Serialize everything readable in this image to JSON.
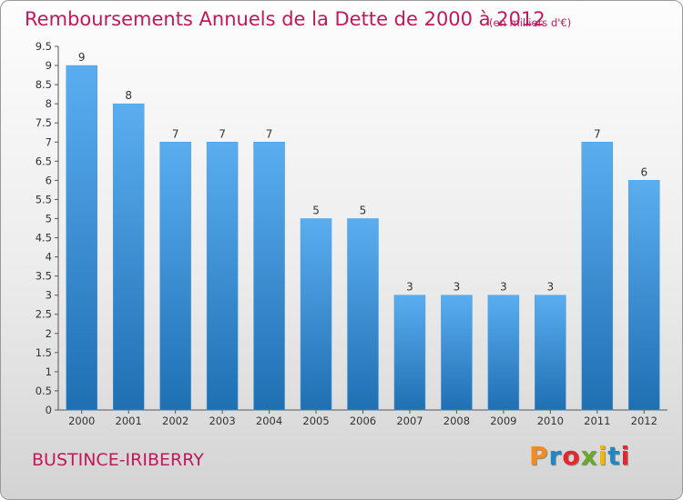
{
  "header": {
    "title": "Remboursements Annuels de la Dette de 2000 à 2012",
    "unit": "(en milliers d'€)"
  },
  "footer": {
    "commune": "BUSTINCE-IRIBERRY",
    "brand_letters": [
      "P",
      "r",
      "o",
      "x",
      "i",
      "t",
      "i"
    ],
    "brand_colors": [
      "#f28c1e",
      "#1e88c7",
      "#e6262e",
      "#6aa928",
      "#f2b705",
      "#1e88c7",
      "#e6262e"
    ]
  },
  "colors": {
    "accent_text": "#c2185b",
    "bar_top": "#5aaef0",
    "bar_bottom": "#1f6fb3"
  },
  "chart_data": {
    "type": "bar",
    "title": "Remboursements Annuels de la Dette de 2000 à 2012",
    "subtitle": "(en milliers d'€)",
    "categories": [
      "2000",
      "2001",
      "2002",
      "2003",
      "2004",
      "2005",
      "2006",
      "2007",
      "2008",
      "2009",
      "2010",
      "2011",
      "2012"
    ],
    "values": [
      9,
      8,
      7,
      7,
      7,
      5,
      5,
      3,
      3,
      3,
      3,
      7,
      6
    ],
    "data_labels": [
      "9",
      "8",
      "7",
      "7",
      "7",
      "5",
      "5",
      "3",
      "3",
      "3",
      "3",
      "7",
      "6"
    ],
    "ylim": [
      0,
      9.5
    ],
    "yticks": [
      "0",
      "0.5",
      "1",
      "1.5",
      "2",
      "2.5",
      "3",
      "3.5",
      "4",
      "4.5",
      "5",
      "5.5",
      "6",
      "6.5",
      "7",
      "7.5",
      "8",
      "8.5",
      "9",
      "9.5"
    ],
    "ytick_values": [
      0,
      0.5,
      1,
      1.5,
      2,
      2.5,
      3,
      3.5,
      4,
      4.5,
      5,
      5.5,
      6,
      6.5,
      7,
      7.5,
      8,
      8.5,
      9,
      9.5
    ],
    "grid": false
  }
}
